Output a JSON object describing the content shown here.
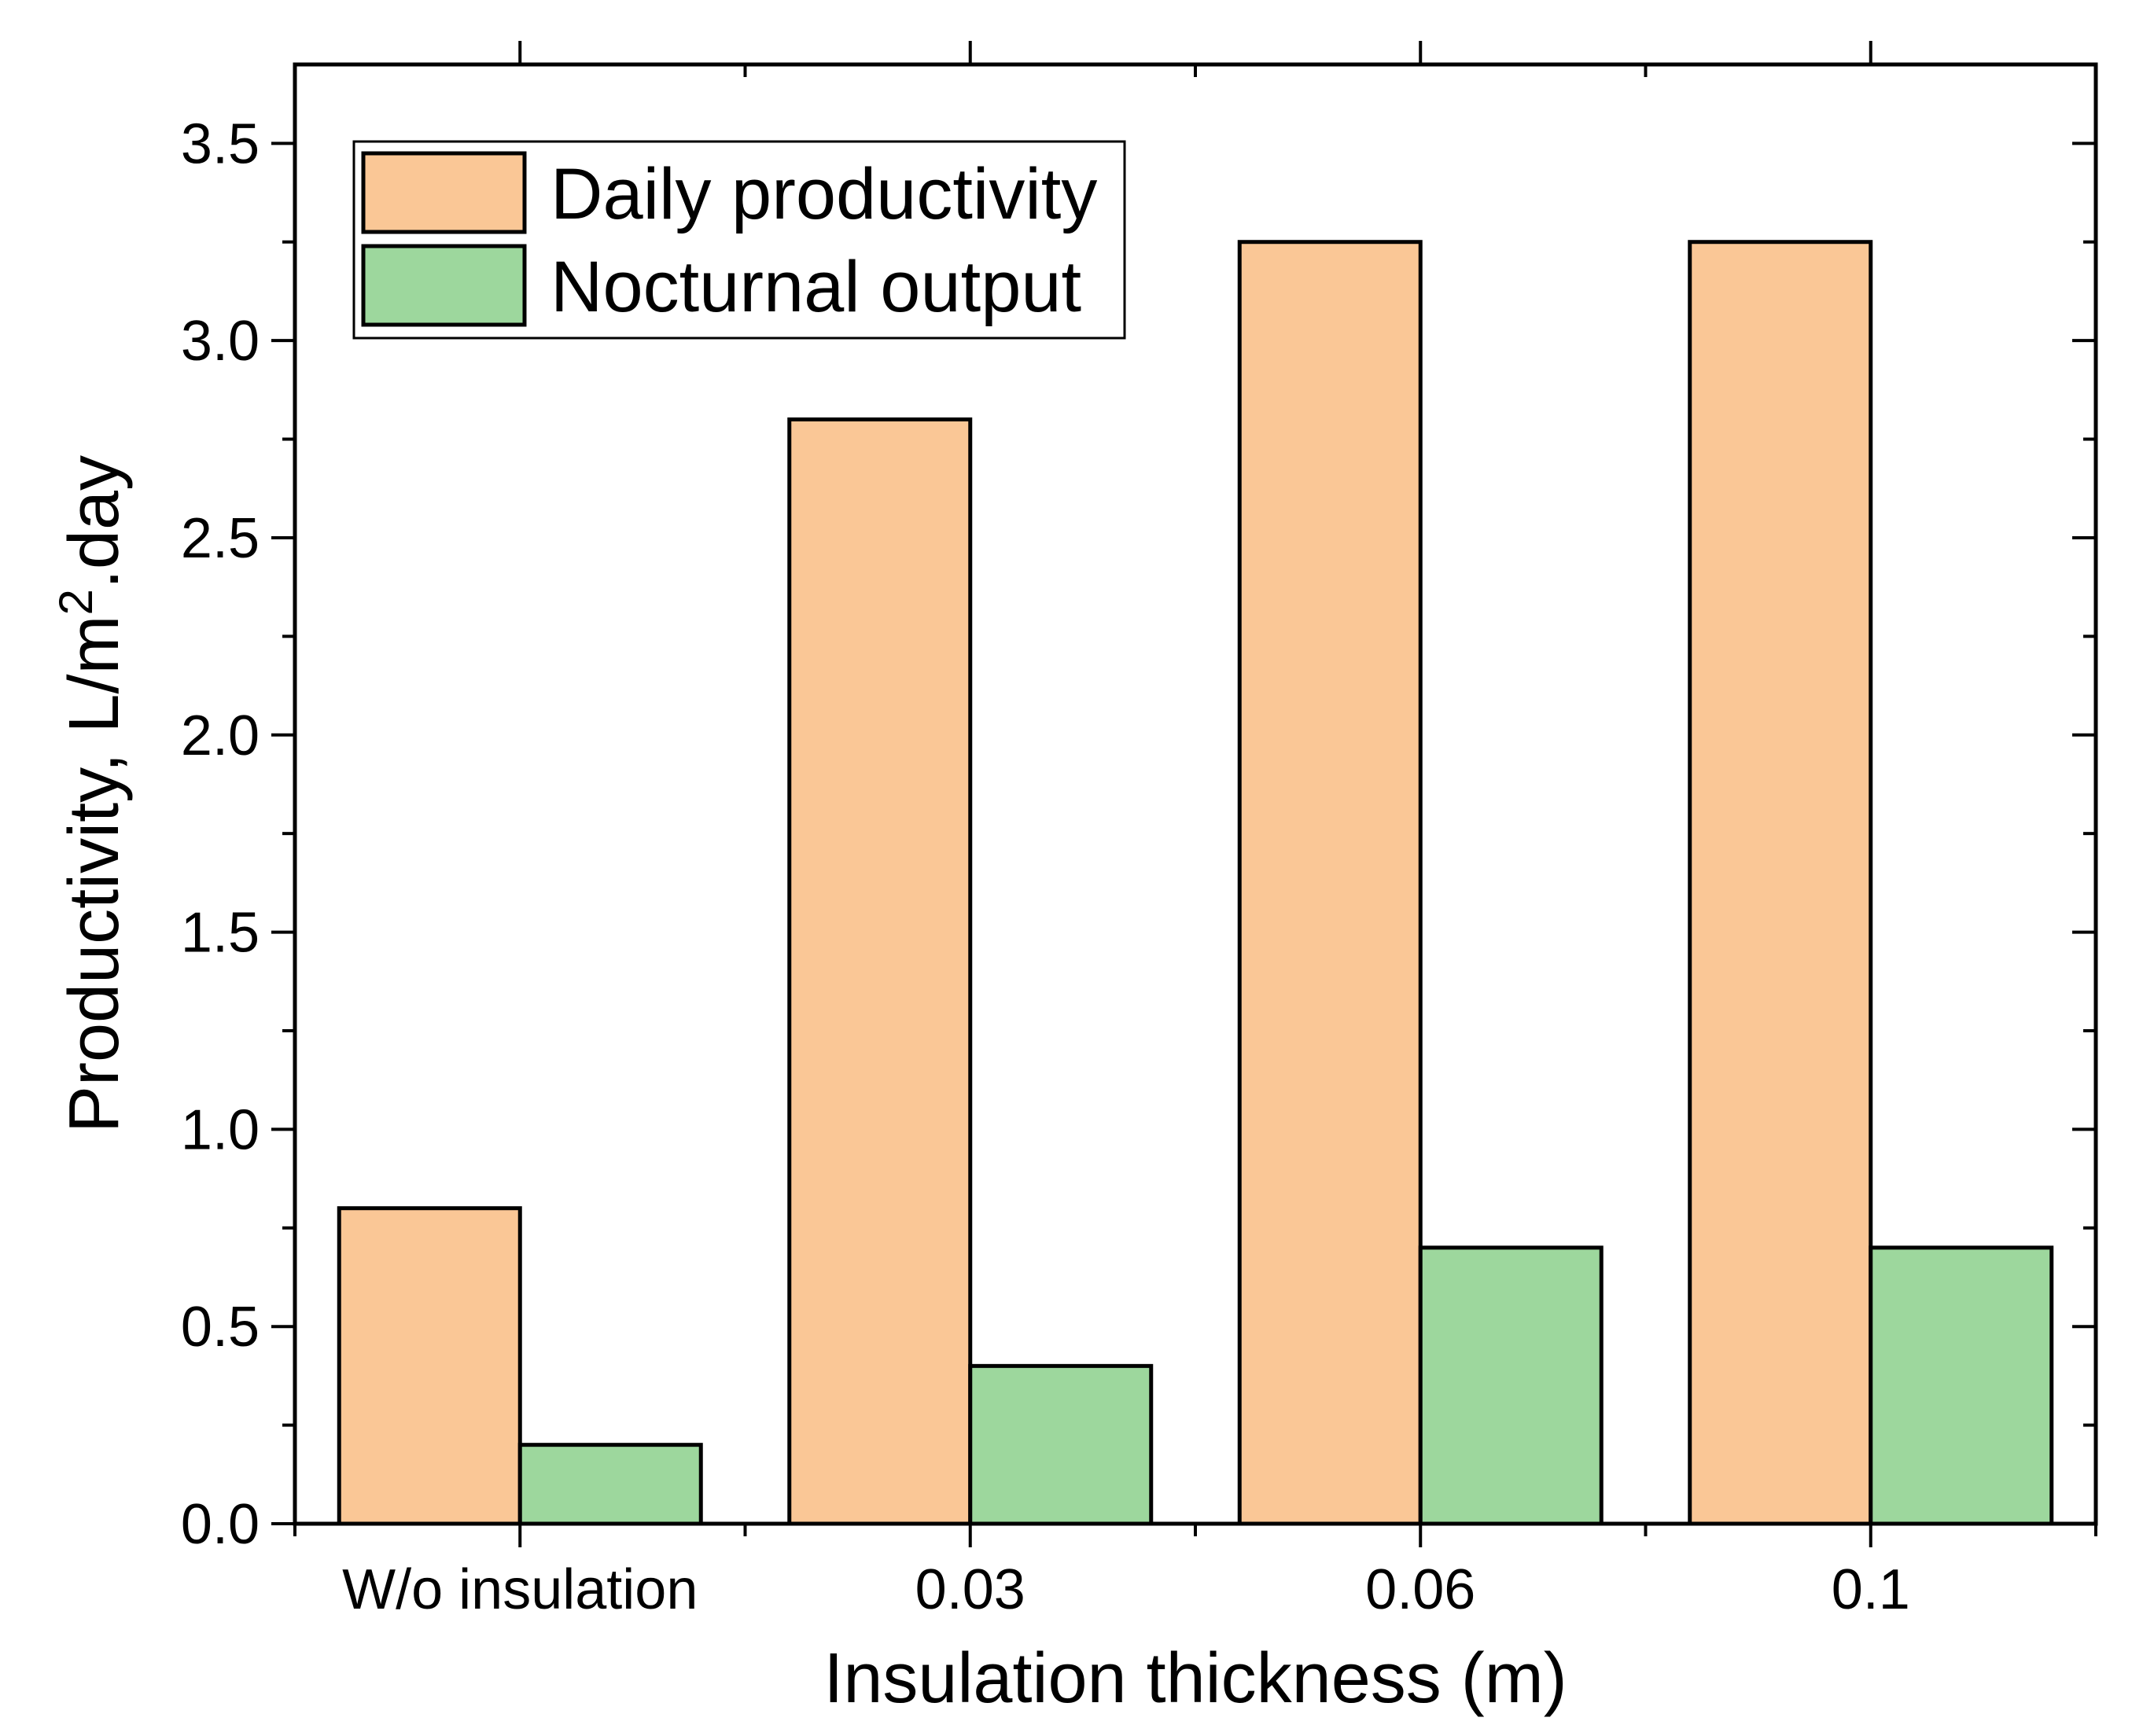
{
  "chart_data": {
    "type": "bar",
    "title": "",
    "xlabel": "Insulation thickness (m)",
    "ylabel": {
      "prefix": "Productivity, L/m",
      "superscript": "2",
      "suffix": ".day"
    },
    "categories": [
      "W/o insulation",
      "0.03",
      "0.06",
      "0.1"
    ],
    "series": [
      {
        "name": "Daily productivity",
        "values": [
          0.8,
          2.8,
          3.25,
          3.25
        ],
        "color": "#FAC796"
      },
      {
        "name": "Nocturnal output",
        "values": [
          0.2,
          0.4,
          0.7,
          0.7
        ],
        "color": "#9DD79D"
      }
    ],
    "ylim": [
      0,
      3.7
    ],
    "yticks": [
      "0.0",
      "0.5",
      "1.0",
      "1.5",
      "2.0",
      "2.5",
      "3.0",
      "3.5"
    ],
    "grid": false,
    "legend_position": "top-left"
  }
}
